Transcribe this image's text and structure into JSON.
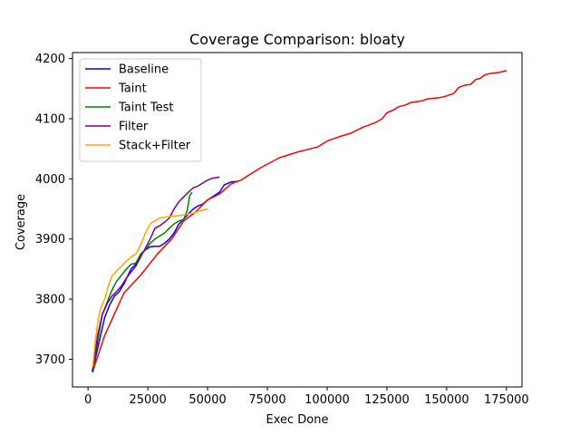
{
  "chart_data": {
    "type": "line",
    "title": "Coverage Comparison: bloaty",
    "xlabel": "Exec Done",
    "ylabel": "Coverage",
    "xlim": [
      -6500,
      181500
    ],
    "ylim": [
      3654,
      4210
    ],
    "xticks": [
      0,
      25000,
      50000,
      75000,
      100000,
      125000,
      150000,
      175000
    ],
    "yticks": [
      3700,
      3800,
      3900,
      4000,
      4100,
      4200
    ],
    "grid": false,
    "legend_position": "top-left",
    "series": [
      {
        "name": "Baseline",
        "color": "#0000ff",
        "points": [
          [
            1700,
            3680
          ],
          [
            3000,
            3700
          ],
          [
            5000,
            3735
          ],
          [
            7000,
            3770
          ],
          [
            9000,
            3790
          ],
          [
            11000,
            3805
          ],
          [
            13000,
            3812
          ],
          [
            15000,
            3825
          ],
          [
            16500,
            3838
          ],
          [
            18000,
            3850
          ],
          [
            19500,
            3856
          ],
          [
            20500,
            3862
          ],
          [
            21500,
            3870
          ],
          [
            22500,
            3877
          ],
          [
            24000,
            3882
          ],
          [
            26000,
            3887
          ],
          [
            28000,
            3888
          ],
          [
            30000,
            3888
          ],
          [
            32000,
            3893
          ],
          [
            34000,
            3900
          ],
          [
            36000,
            3910
          ],
          [
            38000,
            3925
          ],
          [
            40000,
            3933
          ],
          [
            42000,
            3942
          ],
          [
            44000,
            3950
          ],
          [
            46000,
            3955
          ],
          [
            48000,
            3958
          ],
          [
            50000,
            3965
          ],
          [
            52000,
            3970
          ],
          [
            55000,
            3978
          ],
          [
            57000,
            3990
          ],
          [
            60000,
            3995
          ],
          [
            63000,
            3996
          ]
        ]
      },
      {
        "name": "Taint",
        "color": "#ff0000",
        "points": [
          [
            2000,
            3680
          ],
          [
            7000,
            3740
          ],
          [
            15000,
            3810
          ],
          [
            22000,
            3840
          ],
          [
            29000,
            3875
          ],
          [
            35000,
            3900
          ],
          [
            40000,
            3930
          ],
          [
            45000,
            3945
          ],
          [
            50000,
            3965
          ],
          [
            55000,
            3975
          ],
          [
            60000,
            3992
          ],
          [
            64000,
            3998
          ],
          [
            72000,
            4018
          ],
          [
            80000,
            4035
          ],
          [
            88000,
            4045
          ],
          [
            96000,
            4053
          ],
          [
            100000,
            4063
          ],
          [
            105000,
            4070
          ],
          [
            110000,
            4076
          ],
          [
            115000,
            4086
          ],
          [
            120000,
            4093
          ],
          [
            123000,
            4100
          ],
          [
            125000,
            4110
          ],
          [
            128000,
            4115
          ],
          [
            130000,
            4120
          ],
          [
            133000,
            4123
          ],
          [
            135000,
            4127
          ],
          [
            140000,
            4130
          ],
          [
            142000,
            4133
          ],
          [
            147000,
            4135
          ],
          [
            150000,
            4138
          ],
          [
            153000,
            4142
          ],
          [
            155000,
            4152
          ],
          [
            158000,
            4156
          ],
          [
            160000,
            4157
          ],
          [
            162000,
            4165
          ],
          [
            164000,
            4167
          ],
          [
            166000,
            4173
          ],
          [
            168000,
            4175
          ],
          [
            172000,
            4177
          ],
          [
            175000,
            4180
          ]
        ]
      },
      {
        "name": "Taint Test",
        "color": "#008000",
        "points": [
          [
            2000,
            3678
          ],
          [
            4000,
            3730
          ],
          [
            6000,
            3775
          ],
          [
            8000,
            3795
          ],
          [
            10000,
            3815
          ],
          [
            12000,
            3830
          ],
          [
            14000,
            3840
          ],
          [
            16000,
            3850
          ],
          [
            18000,
            3858
          ],
          [
            20000,
            3860
          ],
          [
            22000,
            3875
          ],
          [
            24000,
            3882
          ],
          [
            26000,
            3893
          ],
          [
            28000,
            3900
          ],
          [
            30000,
            3905
          ],
          [
            32000,
            3910
          ],
          [
            34000,
            3918
          ],
          [
            36000,
            3925
          ],
          [
            38000,
            3930
          ],
          [
            40000,
            3932
          ],
          [
            41500,
            3948
          ],
          [
            42500,
            3972
          ],
          [
            43500,
            3978
          ]
        ]
      },
      {
        "name": "Filter",
        "color": "#800080",
        "points": [
          [
            2000,
            3680
          ],
          [
            4000,
            3740
          ],
          [
            6000,
            3775
          ],
          [
            8000,
            3793
          ],
          [
            10000,
            3805
          ],
          [
            12000,
            3813
          ],
          [
            14000,
            3822
          ],
          [
            16000,
            3835
          ],
          [
            18000,
            3845
          ],
          [
            20000,
            3855
          ],
          [
            22000,
            3870
          ],
          [
            24000,
            3885
          ],
          [
            26000,
            3900
          ],
          [
            28000,
            3918
          ],
          [
            30000,
            3922
          ],
          [
            32000,
            3928
          ],
          [
            34000,
            3935
          ],
          [
            36000,
            3950
          ],
          [
            38000,
            3962
          ],
          [
            40000,
            3970
          ],
          [
            42000,
            3978
          ],
          [
            44000,
            3985
          ],
          [
            46000,
            3988
          ],
          [
            48000,
            3993
          ],
          [
            50000,
            3998
          ],
          [
            52000,
            4001
          ],
          [
            55000,
            4003
          ]
        ]
      },
      {
        "name": "Stack+Filter",
        "color": "#ffa500",
        "points": [
          [
            2000,
            3688
          ],
          [
            3000,
            3730
          ],
          [
            4000,
            3760
          ],
          [
            5000,
            3780
          ],
          [
            6000,
            3792
          ],
          [
            7000,
            3800
          ],
          [
            8000,
            3815
          ],
          [
            9000,
            3828
          ],
          [
            10000,
            3838
          ],
          [
            12000,
            3847
          ],
          [
            14000,
            3855
          ],
          [
            16000,
            3863
          ],
          [
            18000,
            3870
          ],
          [
            20000,
            3875
          ],
          [
            22000,
            3890
          ],
          [
            24000,
            3910
          ],
          [
            26000,
            3925
          ],
          [
            28000,
            3930
          ],
          [
            30000,
            3935
          ],
          [
            33000,
            3937
          ],
          [
            36000,
            3938
          ],
          [
            40000,
            3940
          ],
          [
            44000,
            3943
          ],
          [
            47000,
            3947
          ],
          [
            50000,
            3950
          ]
        ]
      }
    ]
  }
}
